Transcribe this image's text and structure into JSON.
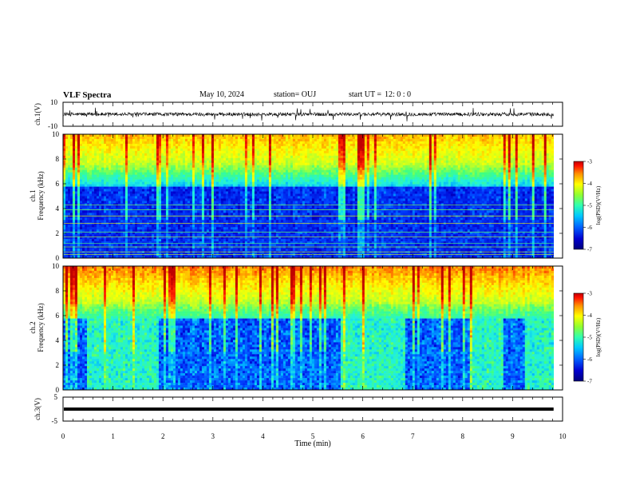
{
  "header": {
    "title": "VLF Spectra",
    "date": "May 10, 2024",
    "station": "station= OUJ",
    "start_label": "start  UT  =",
    "start_value": "12: 0  : 0"
  },
  "chart_data": [
    {
      "type": "line",
      "panel": "ch1-waveform",
      "ylabel": "ch.1(V)",
      "ylim": [
        -10,
        10
      ],
      "yticks": [
        "10",
        "-10"
      ],
      "xlim": [
        0,
        10
      ],
      "baseline": 0,
      "amplitude": 1.5,
      "data_end_x": 9.82,
      "color": "#000000"
    },
    {
      "type": "heatmap",
      "panel": "ch1-spectrogram",
      "ylabel": "ch.1\nFrequency (kHz)",
      "ylim": [
        0,
        10
      ],
      "yticks": [
        "0",
        "2",
        "4",
        "6",
        "8",
        "10"
      ],
      "xlim": [
        0,
        10
      ],
      "data_end_x": 9.82,
      "colorbar": {
        "label": "log(PSD)(V²/Hz)",
        "range": [
          -7,
          -3
        ],
        "ticks": [
          "-3",
          "-4",
          "-5",
          "-6",
          "-7"
        ]
      },
      "lines_khz": [
        0.3,
        0.5,
        0.9,
        1.2,
        1.7,
        2.1,
        2.8,
        3.4,
        3.9,
        4.3
      ]
    },
    {
      "type": "heatmap",
      "panel": "ch2-spectrogram",
      "ylabel": "ch.2\nFrequency (kHz)",
      "ylim": [
        0,
        10
      ],
      "yticks": [
        "0",
        "2",
        "4",
        "6",
        "8",
        "10"
      ],
      "xlim": [
        0,
        10
      ],
      "data_end_x": 9.82,
      "colorbar": {
        "label": "log(PSD)(V²/Hz)",
        "range": [
          -7,
          -3
        ],
        "ticks": [
          "-3",
          "-4",
          "-5",
          "-6",
          "-7"
        ]
      },
      "quiet_intervals_min": [
        [
          0,
          0.45
        ],
        [
          1.9,
          5.55
        ],
        [
          6.85,
          8.1
        ],
        [
          8.8,
          9.2
        ]
      ]
    },
    {
      "type": "line",
      "panel": "ch3-waveform",
      "ylabel": "ch.3(V)",
      "ylim": [
        -5,
        5
      ],
      "yticks": [
        "5",
        "0",
        "-5"
      ],
      "xlim": [
        0,
        10
      ],
      "baseline": 0,
      "data_end_x": 9.82,
      "color": "#000000"
    }
  ],
  "x_axis": {
    "label": "Time  (min)",
    "ticks": [
      "0",
      "1",
      "2",
      "3",
      "4",
      "5",
      "6",
      "7",
      "8",
      "9",
      "10"
    ]
  },
  "colors": {
    "colormap": [
      "#00007a",
      "#0000d0",
      "#0040ff",
      "#00b0ff",
      "#20f0e0",
      "#40ff80",
      "#b0ff30",
      "#ffff00",
      "#ffa000",
      "#ff2000",
      "#c00000"
    ]
  }
}
